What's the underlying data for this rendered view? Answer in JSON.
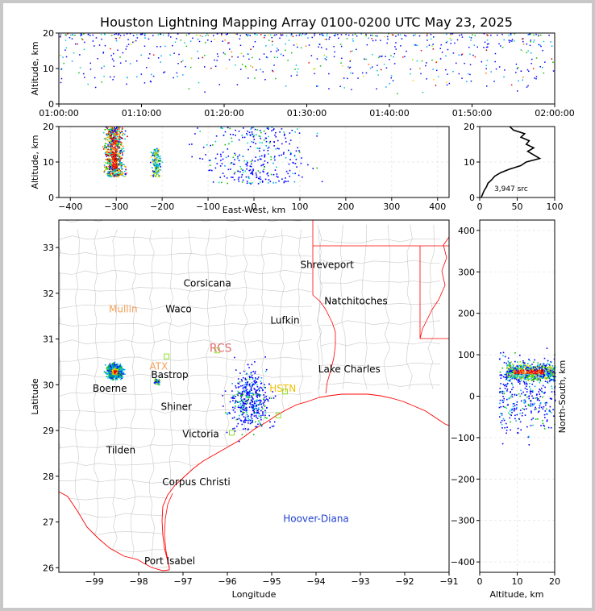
{
  "title": "Houston Lightning Mapping Array 0100-0200 UTC May 23, 2025",
  "chart_data": [
    {
      "panel": "time-altitude",
      "type": "scatter",
      "ylabel": "Altitude, km",
      "xlim": [
        "01:00:00",
        "02:00:00"
      ],
      "ylim": [
        0,
        20
      ],
      "x_ticks": [
        "01:00:00",
        "01:10:00",
        "01:20:00",
        "01:30:00",
        "01:40:00",
        "01:50:00",
        "02:00:00"
      ],
      "y_ticks": [
        0,
        10,
        20
      ],
      "source_altitude_range_km": [
        3,
        20
      ]
    },
    {
      "panel": "east-west-altitude",
      "type": "scatter",
      "xlabel": "East-West, km",
      "ylabel": "Altitude, km",
      "xlim": [
        -425,
        425
      ],
      "ylim": [
        0,
        20
      ],
      "x_ticks": [
        -400,
        -300,
        -200,
        -100,
        0,
        100,
        200,
        300,
        400
      ],
      "y_ticks": [
        0,
        10,
        20
      ],
      "clusters": [
        {
          "x_center": -305,
          "x_spread": 10,
          "alt_range": [
            6,
            20
          ],
          "density": "high"
        },
        {
          "x_center": -215,
          "x_spread": 5,
          "alt_range": [
            6,
            14
          ],
          "density": "medium"
        },
        {
          "x_center": 0,
          "x_spread": 55,
          "alt_range": [
            4,
            20
          ],
          "density": "low"
        }
      ]
    },
    {
      "panel": "altitude-histogram",
      "type": "line",
      "xlim": [
        0,
        100
      ],
      "ylim": [
        0,
        20
      ],
      "x_ticks": [
        0,
        50,
        100
      ],
      "y_ticks": [
        0,
        10,
        20
      ],
      "annotation": "3,947 src",
      "altitude_km": [
        0,
        1,
        2,
        3,
        4,
        5,
        6,
        7,
        8,
        9,
        10,
        11,
        12,
        13,
        14,
        15,
        16,
        17,
        18,
        19,
        20
      ],
      "sources": [
        2,
        4,
        6,
        9,
        11,
        16,
        20,
        28,
        40,
        55,
        62,
        80,
        72,
        64,
        72,
        62,
        66,
        55,
        60,
        45,
        40
      ]
    },
    {
      "panel": "plan-view",
      "type": "scatter",
      "xlabel": "Longitude",
      "ylabel": "Latitude",
      "xlim": [
        -99.8,
        -91
      ],
      "ylim": [
        25.9,
        33.6
      ],
      "x_ticks": [
        -99,
        -98,
        -97,
        -96,
        -95,
        -94,
        -93,
        -92,
        -91
      ],
      "y_ticks": [
        26,
        27,
        28,
        29,
        30,
        31,
        32,
        33
      ],
      "clusters": [
        {
          "lon": -98.55,
          "lat": 30.3,
          "spread": 0.17,
          "density": "high"
        },
        {
          "lon": -97.6,
          "lat": 30.08,
          "spread": 0.06,
          "density": "medium"
        },
        {
          "lon": -95.5,
          "lat": 29.7,
          "spread": 0.45,
          "density": "low"
        }
      ],
      "cities": [
        {
          "name": "Shreveport",
          "lon": -93.75,
          "lat": 32.55,
          "color": "#000000"
        },
        {
          "name": "Corsicana",
          "lon": -96.45,
          "lat": 32.15,
          "color": "#000000"
        },
        {
          "name": "Mullin",
          "lon": -98.35,
          "lat": 31.58,
          "color": "#f5a05a"
        },
        {
          "name": "Waco",
          "lon": -97.1,
          "lat": 31.58,
          "color": "#000000"
        },
        {
          "name": "Natchitoches",
          "lon": -93.1,
          "lat": 31.76,
          "color": "#000000"
        },
        {
          "name": "Lufkin",
          "lon": -94.7,
          "lat": 31.34,
          "color": "#000000"
        },
        {
          "name": "RCS",
          "lon": -96.15,
          "lat": 30.72,
          "color": "#e07070"
        },
        {
          "name": "ATX",
          "lon": -97.55,
          "lat": 30.33,
          "color": "#f5a05a"
        },
        {
          "name": "Bastrop",
          "lon": -97.3,
          "lat": 30.15,
          "color": "#000000"
        },
        {
          "name": "Lake Charles",
          "lon": -93.25,
          "lat": 30.27,
          "color": "#000000"
        },
        {
          "name": "Boerne",
          "lon": -98.65,
          "lat": 29.85,
          "color": "#000000"
        },
        {
          "name": "HSTN",
          "lon": -94.75,
          "lat": 29.85,
          "color": "#f2c000"
        },
        {
          "name": "Shiner",
          "lon": -97.15,
          "lat": 29.45,
          "color": "#000000"
        },
        {
          "name": "Victoria",
          "lon": -96.6,
          "lat": 28.85,
          "color": "#000000"
        },
        {
          "name": "Tilden",
          "lon": -98.4,
          "lat": 28.5,
          "color": "#000000"
        },
        {
          "name": "Corpus Christi",
          "lon": -96.7,
          "lat": 27.8,
          "color": "#000000"
        },
        {
          "name": "Hoover-Diana",
          "lon": -94.0,
          "lat": 27.0,
          "color": "#1f3fd0"
        },
        {
          "name": "Port Isabel",
          "lon": -97.3,
          "lat": 26.08,
          "color": "#000000"
        }
      ]
    },
    {
      "panel": "altitude-north-south",
      "type": "scatter",
      "xlabel": "Altitude, km",
      "ylabel": "North-South, km",
      "xlim": [
        0,
        20
      ],
      "ylim": [
        -425,
        425
      ],
      "x_ticks": [
        0,
        10,
        20
      ],
      "y_ticks": [
        -400,
        -300,
        -200,
        -100,
        0,
        100,
        200,
        300,
        400
      ],
      "clusters": [
        {
          "y_center": 60,
          "y_spread": 10,
          "alt_range": [
            7,
            20
          ],
          "density": "high"
        },
        {
          "y_center": 5,
          "y_spread": 45,
          "alt_range": [
            5,
            20
          ],
          "density": "low"
        }
      ]
    }
  ],
  "colors": {
    "source_ramp": [
      "#0000ff",
      "#00a0ff",
      "#00d0c0",
      "#00c000",
      "#a0e000",
      "#ffd000",
      "#ff7000",
      "#ff0000",
      "#a00000"
    ],
    "state_border": "#ff0000",
    "county_border": "#c8c8c8",
    "coastline": "#ff0000",
    "station_marker": "#90e030"
  }
}
